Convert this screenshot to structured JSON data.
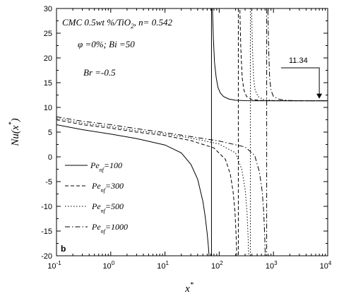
{
  "chart_data": {
    "type": "line",
    "xscale": "log",
    "xlim": [
      0.1,
      10000
    ],
    "ylim": [
      -20,
      30
    ],
    "grid": false,
    "legend_position": "bottom-left",
    "xlabel": "x",
    "xlabel_superscript": "*",
    "ylabel": "Nu(x",
    "ylabel_superscript": "*",
    "ylabel_close": ")",
    "x_ticks": [
      {
        "value": 0.1,
        "base": "10",
        "exp": "-1"
      },
      {
        "value": 1,
        "base": "10",
        "exp": "0"
      },
      {
        "value": 10,
        "base": "10",
        "exp": "1"
      },
      {
        "value": 100,
        "base": "10",
        "exp": "2"
      },
      {
        "value": 1000,
        "base": "10",
        "exp": "3"
      },
      {
        "value": 10000,
        "base": "10",
        "exp": "4"
      }
    ],
    "y_ticks": [
      -20,
      -15,
      -10,
      -5,
      0,
      5,
      10,
      15,
      20,
      25,
      30
    ],
    "annotations": {
      "line1_a": "CMC 0.5wt %/TiO",
      "line1_sub": "2",
      "line1_b": ", n= 0.542",
      "line2": "φ =0%; Bi =50",
      "line3": "Br =-0.5",
      "panel": "b",
      "callout": "11.34",
      "callout_x": 7000,
      "callout_y": 11.34
    },
    "asymptote": 11.34,
    "series": [
      {
        "name_base": "Pe",
        "name_sub": "nf",
        "name_value": "=100",
        "dash": "",
        "singularity": 72,
        "left_x": [
          0.1,
          0.3,
          1,
          3,
          10,
          20,
          30,
          40,
          50,
          55,
          60,
          63,
          65,
          67
        ],
        "left_y": [
          6.5,
          5.5,
          4.6,
          3.7,
          2.4,
          0.8,
          -1.5,
          -4.5,
          -9,
          -12,
          -15.5,
          -18,
          -20,
          -22
        ],
        "right_x": [
          73,
          75,
          78,
          82,
          88,
          95,
          105,
          120,
          150,
          200,
          300,
          500,
          1000,
          3000,
          10000
        ],
        "right_y": [
          40,
          30,
          24,
          19,
          16,
          14,
          12.9,
          12.2,
          11.7,
          11.45,
          11.36,
          11.34,
          11.34,
          11.34,
          11.34
        ]
      },
      {
        "name_base": "Pe",
        "name_sub": "nf",
        "name_value": "=300",
        "dash": "5,3",
        "singularity": 225,
        "left_x": [
          0.1,
          0.3,
          1,
          3,
          10,
          30,
          80,
          130,
          160,
          180,
          195,
          205,
          212
        ],
        "left_y": [
          7.5,
          6.5,
          5.8,
          5.0,
          4.3,
          3.3,
          1.8,
          -0.5,
          -3.5,
          -7,
          -11,
          -16,
          -21
        ],
        "right_x": [
          232,
          240,
          250,
          265,
          285,
          320,
          400,
          600,
          1000,
          10000
        ],
        "right_y": [
          40,
          30,
          22,
          16,
          13.5,
          12.2,
          11.6,
          11.4,
          11.34,
          11.34
        ]
      },
      {
        "name_base": "Pe",
        "name_sub": "nf",
        "name_value": "=500",
        "dash": "1.5,2.5",
        "singularity": 375,
        "left_x": [
          0.1,
          0.3,
          1,
          3,
          10,
          30,
          100,
          200,
          260,
          300,
          325,
          340,
          352
        ],
        "left_y": [
          7.8,
          6.8,
          6.1,
          5.3,
          4.6,
          3.8,
          2.6,
          0.8,
          -2.5,
          -6.5,
          -11,
          -16,
          -21
        ],
        "right_x": [
          385,
          395,
          410,
          430,
          460,
          520,
          650,
          1000,
          2000,
          10000
        ],
        "right_y": [
          40,
          30,
          22,
          16,
          13.5,
          12.2,
          11.6,
          11.4,
          11.34,
          11.34
        ]
      },
      {
        "name_base": "Pe",
        "name_sub": "nf",
        "name_value": "=1000",
        "dash": "7,3,1.5,3",
        "singularity": 750,
        "left_x": [
          0.1,
          0.3,
          1,
          3,
          10,
          30,
          100,
          300,
          450,
          550,
          620,
          660,
          690,
          710
        ],
        "left_y": [
          8.1,
          7.2,
          6.5,
          5.7,
          4.9,
          4.1,
          3.2,
          2.0,
          0.3,
          -3,
          -7,
          -11,
          -16,
          -21
        ],
        "right_x": [
          770,
          790,
          815,
          850,
          900,
          1000,
          1300,
          2000,
          4000,
          10000
        ],
        "right_y": [
          40,
          30,
          22,
          16,
          13.5,
          12.2,
          11.6,
          11.4,
          11.34,
          11.34
        ]
      }
    ]
  }
}
